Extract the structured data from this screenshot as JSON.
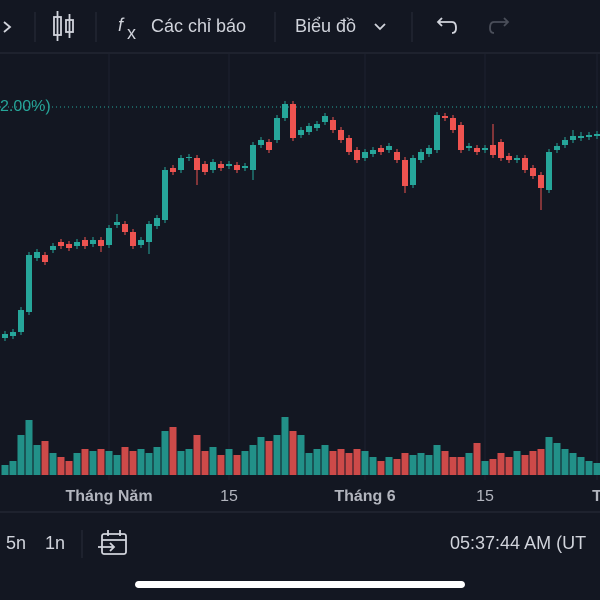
{
  "toolbar": {
    "indicators": "Các chỉ báo",
    "chart_menu": "Biểu đồ"
  },
  "chart_data": {
    "type": "candlestick",
    "categories": [
      null,
      null,
      null,
      null,
      null,
      null,
      null,
      null,
      null,
      null,
      null,
      null,
      null,
      "Tháng Năm",
      null,
      null,
      null,
      null,
      null,
      null,
      null,
      null,
      null,
      null,
      null,
      null,
      null,
      null,
      "15",
      null,
      null,
      null,
      null,
      null,
      null,
      null,
      null,
      null,
      null,
      null,
      null,
      null,
      null,
      null,
      null,
      "Tháng 6",
      null,
      null,
      null,
      null,
      null,
      null,
      null,
      null,
      null,
      null,
      null,
      null,
      null,
      null,
      "15",
      null,
      null,
      null,
      null,
      null,
      null,
      null,
      null,
      null,
      null,
      null,
      null,
      null,
      "T"
    ],
    "open": [
      22,
      24,
      28,
      48,
      102,
      105,
      110,
      118,
      116,
      114,
      120,
      116,
      120,
      115,
      135,
      136,
      128,
      115,
      118,
      134,
      140,
      192,
      190,
      202,
      202,
      196,
      190,
      196,
      194,
      195,
      192,
      190,
      215,
      218,
      220,
      242,
      256,
      225,
      228,
      232,
      238,
      240,
      230,
      222,
      210,
      202,
      206,
      212,
      210,
      208,
      200,
      175,
      200,
      206,
      210,
      244,
      242,
      235,
      212,
      212,
      210,
      215,
      218,
      204,
      200,
      202,
      192,
      185,
      170,
      210,
      215,
      220,
      222,
      223,
      224
    ],
    "high": [
      29,
      31,
      53,
      108,
      111,
      108,
      117,
      121,
      119,
      121,
      123,
      123,
      123,
      135,
      146,
      139,
      131,
      123,
      139,
      145,
      193,
      195,
      205,
      206,
      205,
      199,
      201,
      199,
      199,
      198,
      197,
      218,
      223,
      221,
      245,
      259,
      259,
      233,
      237,
      239,
      247,
      243,
      233,
      225,
      213,
      211,
      213,
      215,
      217,
      211,
      203,
      205,
      211,
      215,
      248,
      247,
      245,
      238,
      217,
      215,
      215,
      236,
      221,
      207,
      205,
      205,
      195,
      188,
      211,
      217,
      223,
      230,
      228,
      228,
      229
    ],
    "low": [
      19,
      21,
      25,
      45,
      99,
      95,
      107,
      111,
      109,
      111,
      111,
      113,
      108,
      112,
      132,
      125,
      111,
      112,
      106,
      131,
      137,
      185,
      187,
      199,
      175,
      185,
      187,
      189,
      191,
      187,
      189,
      180,
      212,
      207,
      217,
      239,
      219,
      222,
      225,
      229,
      235,
      227,
      217,
      205,
      197,
      199,
      203,
      205,
      207,
      197,
      167,
      172,
      197,
      203,
      207,
      239,
      227,
      207,
      209,
      205,
      207,
      202,
      199,
      197,
      197,
      187,
      181,
      150,
      167,
      207,
      212,
      217,
      219,
      220,
      221
    ],
    "close": [
      26,
      28,
      50,
      105,
      108,
      98,
      114,
      114,
      112,
      118,
      114,
      120,
      114,
      132,
      138,
      128,
      114,
      120,
      136,
      142,
      190,
      188,
      202,
      203,
      190,
      188,
      198,
      192,
      196,
      190,
      194,
      215,
      220,
      210,
      242,
      256,
      222,
      230,
      234,
      236,
      244,
      230,
      220,
      208,
      200,
      208,
      210,
      208,
      214,
      200,
      174,
      202,
      208,
      212,
      245,
      242,
      230,
      210,
      214,
      208,
      212,
      205,
      202,
      200,
      202,
      190,
      184,
      172,
      208,
      214,
      220,
      224,
      224,
      225,
      226
    ],
    "volume": [
      10,
      14,
      40,
      55,
      30,
      34,
      22,
      18,
      14,
      22,
      26,
      24,
      26,
      24,
      20,
      28,
      24,
      26,
      22,
      28,
      44,
      48,
      24,
      26,
      40,
      24,
      28,
      20,
      26,
      20,
      24,
      30,
      38,
      34,
      40,
      58,
      44,
      40,
      22,
      26,
      30,
      24,
      26,
      22,
      26,
      24,
      18,
      14,
      18,
      16,
      22,
      20,
      22,
      20,
      30,
      24,
      18,
      18,
      22,
      32,
      14,
      16,
      22,
      18,
      24,
      20,
      24,
      26,
      38,
      32,
      26,
      22,
      18,
      14,
      12
    ],
    "up_color": "#26a69a",
    "down_color": "#ef5350",
    "ylim": [
      0,
      300
    ],
    "y2lim": [
      0,
      100
    ],
    "reference_line": {
      "value": 253,
      "label": "2.00%)"
    },
    "grid": true
  },
  "footer": {
    "range_5d": "5n",
    "range_1d": "1n",
    "clock": "05:37:44 AM (UT"
  }
}
